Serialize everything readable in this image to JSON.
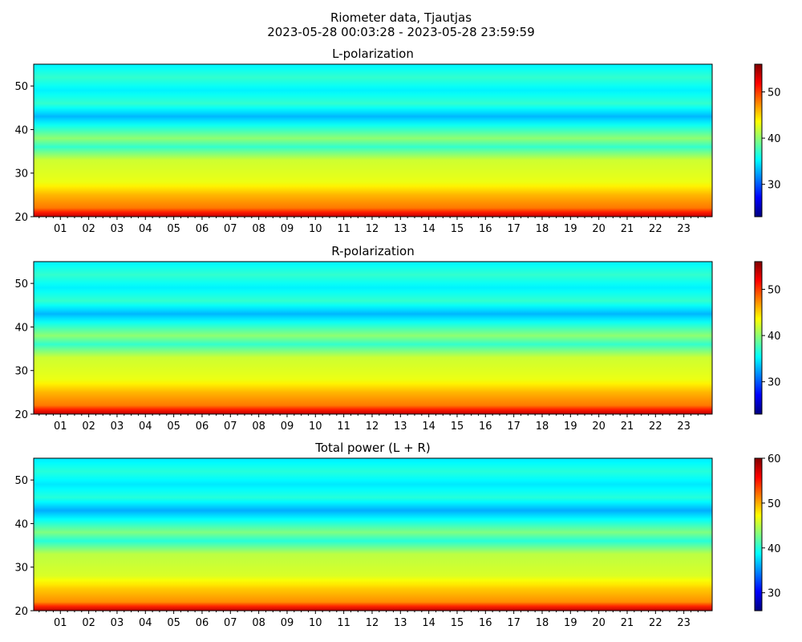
{
  "suptitle_line1": "Riometer data, Tjautjas",
  "suptitle_line2": "2023-05-28 00:03:28 - 2023-05-28 23:59:59",
  "chart_data": [
    {
      "type": "heatmap",
      "title": "L-polarization",
      "xlabel": "",
      "ylabel": "",
      "x_range_hours": [
        0.058,
        24.0
      ],
      "x_tick_labels": [
        "01",
        "02",
        "03",
        "04",
        "05",
        "06",
        "07",
        "08",
        "09",
        "10",
        "11",
        "12",
        "13",
        "14",
        "15",
        "16",
        "17",
        "18",
        "19",
        "20",
        "21",
        "22",
        "23"
      ],
      "y_range": [
        20,
        55
      ],
      "y_ticks": [
        20,
        30,
        40,
        50
      ],
      "colorbar": {
        "colormap": "jet",
        "range": [
          23,
          56
        ],
        "ticks": [
          30,
          40,
          50
        ]
      },
      "value_profile_by_y": [
        [
          20,
          54
        ],
        [
          22,
          48
        ],
        [
          25,
          46
        ],
        [
          28,
          43
        ],
        [
          33,
          42
        ],
        [
          36,
          37
        ],
        [
          38,
          40
        ],
        [
          43,
          33
        ],
        [
          46,
          37
        ],
        [
          49,
          35
        ],
        [
          52,
          37
        ],
        [
          55,
          35
        ]
      ]
    },
    {
      "type": "heatmap",
      "title": "R-polarization",
      "xlabel": "",
      "ylabel": "",
      "x_range_hours": [
        0.058,
        24.0
      ],
      "x_tick_labels": [
        "01",
        "02",
        "03",
        "04",
        "05",
        "06",
        "07",
        "08",
        "09",
        "10",
        "11",
        "12",
        "13",
        "14",
        "15",
        "16",
        "17",
        "18",
        "19",
        "20",
        "21",
        "22",
        "23"
      ],
      "y_range": [
        20,
        55
      ],
      "y_ticks": [
        20,
        30,
        40,
        50
      ],
      "colorbar": {
        "colormap": "jet",
        "range": [
          23,
          56
        ],
        "ticks": [
          30,
          40,
          50
        ]
      },
      "value_profile_by_y": [
        [
          20,
          54
        ],
        [
          22,
          48
        ],
        [
          25,
          46
        ],
        [
          28,
          43
        ],
        [
          33,
          42
        ],
        [
          36,
          37
        ],
        [
          38,
          40
        ],
        [
          43,
          33
        ],
        [
          46,
          37
        ],
        [
          49,
          35
        ],
        [
          52,
          37
        ],
        [
          55,
          35
        ]
      ]
    },
    {
      "type": "heatmap",
      "title": "Total power (L + R)",
      "xlabel": "",
      "ylabel": "",
      "x_range_hours": [
        0.058,
        24.0
      ],
      "x_tick_labels": [
        "01",
        "02",
        "03",
        "04",
        "05",
        "06",
        "07",
        "08",
        "09",
        "10",
        "11",
        "12",
        "13",
        "14",
        "15",
        "16",
        "17",
        "18",
        "19",
        "20",
        "21",
        "22",
        "23"
      ],
      "y_range": [
        20,
        55
      ],
      "y_ticks": [
        20,
        30,
        40,
        50
      ],
      "colorbar": {
        "colormap": "jet",
        "range": [
          26,
          60
        ],
        "ticks": [
          30,
          40,
          50,
          60
        ]
      },
      "value_profile_by_y": [
        [
          20,
          58
        ],
        [
          22,
          51
        ],
        [
          25,
          49
        ],
        [
          28,
          46
        ],
        [
          33,
          45
        ],
        [
          36,
          40
        ],
        [
          38,
          43
        ],
        [
          43,
          36
        ],
        [
          46,
          40
        ],
        [
          49,
          38
        ],
        [
          52,
          40
        ],
        [
          55,
          38
        ]
      ]
    }
  ]
}
